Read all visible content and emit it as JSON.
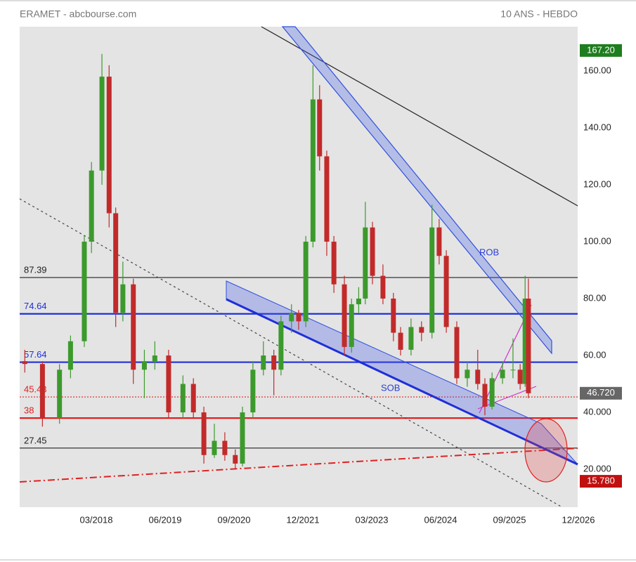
{
  "chart_data": {
    "type": "candlestick",
    "title": "ERAMET - abcbourse.com",
    "subtitle": "10 ANS - HEBDO",
    "x": [
      2016.87,
      2017.19,
      2017.5,
      2017.7,
      2017.95,
      2018.08,
      2018.27,
      2018.4,
      2018.52,
      2018.65,
      2018.84,
      2019.04,
      2019.23,
      2019.48,
      2019.74,
      2019.93,
      2020.12,
      2020.31,
      2020.5,
      2020.69,
      2020.82,
      2021.01,
      2021.2,
      2021.39,
      2021.52,
      2021.71,
      2021.84,
      2021.97,
      2022.1,
      2022.22,
      2022.35,
      2022.48,
      2022.67,
      2022.8,
      2022.93,
      2023.05,
      2023.18,
      2023.37,
      2023.56,
      2023.69,
      2023.88,
      2024.07,
      2024.26,
      2024.39,
      2024.52,
      2024.71,
      2024.9,
      2025.09,
      2025.22,
      2025.35,
      2025.54,
      2025.73,
      2025.86,
      2025.95,
      2026.01
    ],
    "open": [
      58,
      57,
      38,
      55,
      65,
      100,
      125,
      158,
      110,
      75,
      85,
      55,
      58,
      60,
      40,
      50,
      40,
      25,
      30,
      25,
      22,
      40,
      55,
      60,
      55,
      72,
      75,
      72,
      100,
      150,
      130,
      100,
      85,
      63,
      78,
      80,
      105,
      88,
      80,
      68,
      62,
      70,
      68,
      105,
      95,
      70,
      52,
      55,
      50,
      42,
      52,
      55,
      55,
      50,
      80
    ],
    "high": [
      62,
      58,
      57,
      67,
      102,
      128,
      166,
      162,
      112,
      93,
      87,
      62,
      65,
      62,
      53,
      52,
      42,
      36,
      33,
      27,
      42,
      58,
      65,
      62,
      74,
      78,
      76,
      102,
      162,
      155,
      132,
      102,
      88,
      80,
      84,
      114,
      107,
      92,
      82,
      70,
      73,
      72,
      113,
      108,
      97,
      72,
      58,
      62,
      52,
      54,
      58,
      66,
      57,
      88,
      87
    ],
    "low": [
      54,
      35,
      36,
      52,
      63,
      96,
      120,
      105,
      70,
      72,
      50,
      45,
      55,
      38,
      38,
      38,
      22,
      24,
      23,
      20,
      21,
      38,
      53,
      46,
      53,
      68,
      69,
      70,
      98,
      125,
      95,
      82,
      60,
      61,
      75,
      78,
      85,
      78,
      65,
      60,
      60,
      65,
      66,
      92,
      68,
      50,
      49,
      48,
      39,
      41,
      50,
      52,
      48,
      49,
      45
    ],
    "close": [
      57,
      38,
      55,
      65,
      100,
      125,
      158,
      110,
      75,
      85,
      55,
      58,
      60,
      40,
      50,
      40,
      25,
      30,
      25,
      22,
      40,
      55,
      60,
      55,
      72,
      75,
      72,
      100,
      150,
      130,
      100,
      85,
      63,
      78,
      80,
      105,
      88,
      80,
      68,
      62,
      70,
      68,
      105,
      95,
      70,
      52,
      55,
      50,
      42,
      52,
      55,
      55,
      50,
      80,
      46.72
    ],
    "up_color": "#3c9a2c",
    "down_color": "#c22a2a",
    "xlim": [
      2016.777,
      2026.904
    ],
    "xticks": [
      {
        "value": 2018.167,
        "label": "03/2018"
      },
      {
        "value": 2019.417,
        "label": "06/2019"
      },
      {
        "value": 2020.667,
        "label": "09/2020"
      },
      {
        "value": 2021.917,
        "label": "12/2021"
      },
      {
        "value": 2023.167,
        "label": "03/2023"
      },
      {
        "value": 2024.417,
        "label": "06/2024"
      },
      {
        "value": 2025.667,
        "label": "09/2025"
      },
      {
        "value": 2026.917,
        "label": "12/2026"
      }
    ],
    "ylim": [
      6.67,
      175.56
    ],
    "yticks": [
      {
        "value": 20,
        "label": "20.000"
      },
      {
        "value": 40,
        "label": "40.000"
      },
      {
        "value": 60,
        "label": "60.00"
      },
      {
        "value": 80,
        "label": "80.00"
      },
      {
        "value": 100,
        "label": "100.00"
      },
      {
        "value": 120,
        "label": "120.00"
      },
      {
        "value": 140,
        "label": "140.00"
      },
      {
        "value": 160,
        "label": "160.00"
      }
    ],
    "levels": [
      {
        "value": 87.39,
        "color": "#222222",
        "style": "thin"
      },
      {
        "value": 74.64,
        "color": "#1f2fd8",
        "style": "thick"
      },
      {
        "value": 57.64,
        "color": "#1f2fd8",
        "style": "thick"
      },
      {
        "value": 45.43,
        "color": "#e02020",
        "style": "dotted"
      },
      {
        "value": 38,
        "color": "#e02020",
        "style": "thick"
      },
      {
        "value": 27.45,
        "color": "#222222",
        "style": "thin"
      }
    ],
    "price_tags": [
      {
        "value": 167.2,
        "label": "167.20",
        "color": "#1e7d1e"
      },
      {
        "value": 46.72,
        "label": "46.720",
        "color": "#666666"
      },
      {
        "value": 15.78,
        "label": "15.780",
        "color": "#c01010"
      }
    ],
    "annotations": [
      "ROB",
      "SOB"
    ]
  }
}
